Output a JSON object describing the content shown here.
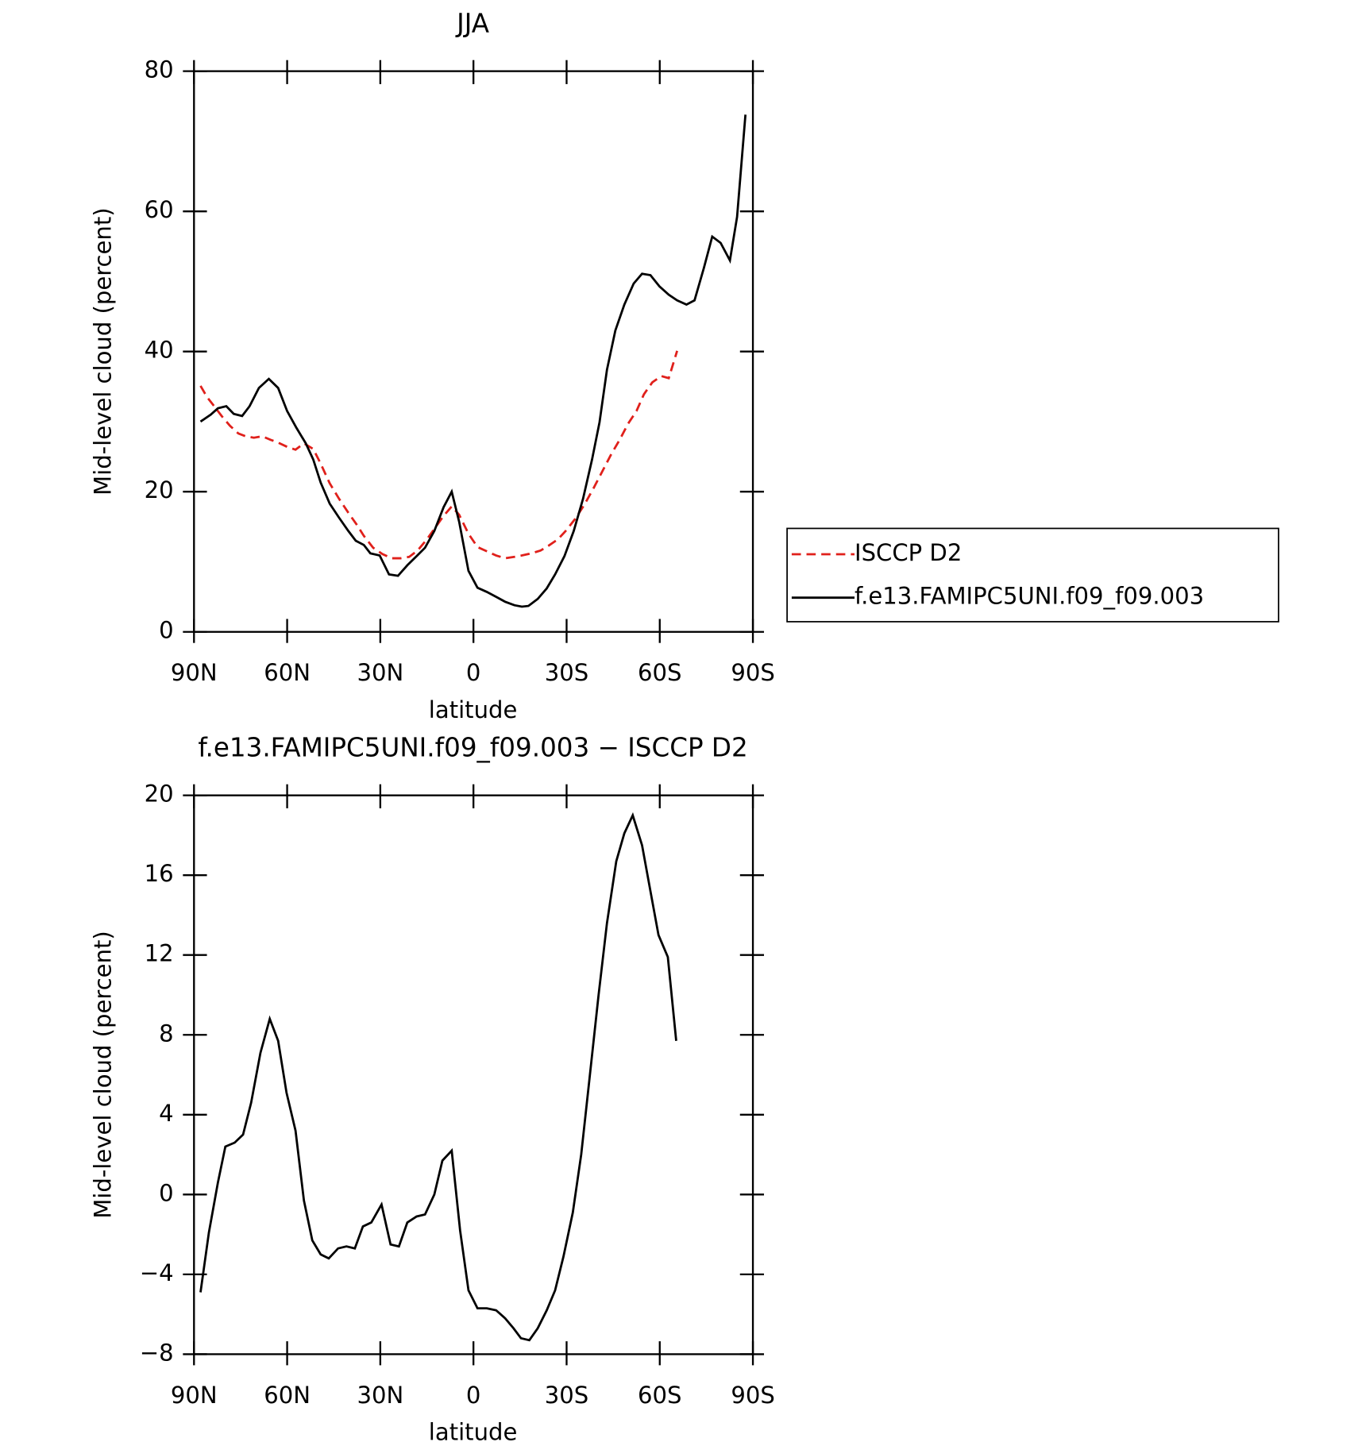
{
  "chart_data": [
    {
      "type": "line",
      "title": "JJA",
      "xlabel": "latitude",
      "ylabel": "Mid-level cloud (percent)",
      "xlim": [
        90,
        -90
      ],
      "xticks": [
        {
          "value": 90,
          "label": "90N"
        },
        {
          "value": 60,
          "label": "60N"
        },
        {
          "value": 30,
          "label": "30N"
        },
        0,
        {
          "value": -30,
          "label": "30S"
        },
        {
          "value": -60,
          "label": "60S"
        },
        {
          "value": -90,
          "label": "90S"
        }
      ],
      "ylim": [
        0,
        80
      ],
      "yticks": [
        0,
        20,
        40,
        60,
        80
      ],
      "legend": "right",
      "series": [
        {
          "name": "ISCCP D2",
          "color": "#e0201b",
          "dash": true,
          "x": [
            87.9,
            85.8,
            83.5,
            81.1,
            78.4,
            75.7,
            73.3,
            70.7,
            68.0,
            65.3,
            62.9,
            60.0,
            57.3,
            54.6,
            51.6,
            49.2,
            46.3,
            43.3,
            40.3,
            37.6,
            35.3,
            32.3,
            29.3,
            26.3,
            23.4,
            20.7,
            18.0,
            15.0,
            12.1,
            9.7,
            7.0,
            4.6,
            1.6,
            -1.3,
            -4.3,
            -7.3,
            -10.2,
            -13.2,
            -15.6,
            -18.6,
            -21.6,
            -24.2,
            -27.2,
            -29.9,
            -32.9,
            -35.8,
            -38.8,
            -41.5,
            -44.2,
            -47.2,
            -49.8,
            -52.5,
            -54.9,
            -57.6,
            -60.5,
            -62.9,
            -65.6
          ],
          "values": [
            35.1,
            33.5,
            32.2,
            30.8,
            29.4,
            28.3,
            27.9,
            27.7,
            27.9,
            27.4,
            27.0,
            26.4,
            26.0,
            26.9,
            26.1,
            24.0,
            21.2,
            19.0,
            17.0,
            15.3,
            13.7,
            12.0,
            11.1,
            10.5,
            10.5,
            10.7,
            11.6,
            13.2,
            15.0,
            16.5,
            17.9,
            16.7,
            14.0,
            12.1,
            11.5,
            10.9,
            10.5,
            10.7,
            10.9,
            11.2,
            11.6,
            12.3,
            13.2,
            14.5,
            16.2,
            18.2,
            20.6,
            22.9,
            25.2,
            27.5,
            29.7,
            31.5,
            33.9,
            35.6,
            36.5,
            36.2,
            40.1
          ]
        },
        {
          "name": "f.e13.FAMIPC5UNI.f09_f09.003",
          "color": "#000000",
          "dash": false,
          "x": [
            87.9,
            84.6,
            82.3,
            79.6,
            77.2,
            74.5,
            72.1,
            69.1,
            65.9,
            62.9,
            60.0,
            57.0,
            54.0,
            51.6,
            49.2,
            46.3,
            43.3,
            40.3,
            37.9,
            35.3,
            33.2,
            30.2,
            27.2,
            24.3,
            21.3,
            18.3,
            15.6,
            12.6,
            9.6,
            7.0,
            4.6,
            1.6,
            -1.3,
            -4.3,
            -7.3,
            -10.2,
            -13.2,
            -15.6,
            -17.7,
            -20.7,
            -23.6,
            -26.3,
            -29.3,
            -32.3,
            -35.3,
            -38.2,
            -40.6,
            -43.0,
            -45.7,
            -48.6,
            -51.6,
            -54.3,
            -57.0,
            -59.9,
            -62.9,
            -65.6,
            -68.6,
            -71.2,
            -74.2,
            -76.9,
            -79.6,
            -82.6,
            -84.9,
            -87.6
          ],
          "values": [
            30.0,
            31.0,
            31.9,
            32.2,
            31.1,
            30.8,
            32.2,
            34.8,
            36.1,
            34.8,
            31.5,
            29.1,
            26.9,
            24.6,
            21.3,
            18.3,
            16.3,
            14.4,
            13.0,
            12.4,
            11.2,
            10.9,
            8.2,
            8.0,
            9.5,
            10.8,
            12.0,
            14.4,
            17.8,
            20.0,
            15.7,
            8.7,
            6.3,
            5.7,
            5.0,
            4.3,
            3.8,
            3.6,
            3.7,
            4.7,
            6.2,
            8.2,
            10.8,
            14.4,
            19.0,
            24.6,
            29.9,
            37.4,
            43.0,
            46.7,
            49.7,
            51.1,
            50.9,
            49.3,
            48.1,
            47.3,
            46.7,
            47.3,
            51.9,
            56.4,
            55.5,
            53.0,
            59.2,
            73.8
          ]
        }
      ]
    },
    {
      "type": "line",
      "title": "f.e13.FAMIPC5UNI.f09_f09.003 − ISCCP D2",
      "xlabel": "latitude",
      "ylabel": "Mid-level cloud (percent)",
      "xlim": [
        90,
        -90
      ],
      "xticks": [
        {
          "value": 90,
          "label": "90N"
        },
        {
          "value": 60,
          "label": "60N"
        },
        {
          "value": 30,
          "label": "30N"
        },
        0,
        {
          "value": -30,
          "label": "30S"
        },
        {
          "value": -60,
          "label": "60S"
        },
        {
          "value": -90,
          "label": "90S"
        }
      ],
      "ylim": [
        -8,
        20
      ],
      "yticks": [
        {
          "value": -8,
          "label": "−8"
        },
        {
          "value": -4,
          "label": "−4"
        },
        0,
        4,
        8,
        12,
        16,
        20
      ],
      "series": [
        {
          "color": "#000000",
          "dash": false,
          "x": [
            87.9,
            85.2,
            82.3,
            79.9,
            76.9,
            74.2,
            71.6,
            68.6,
            65.6,
            62.9,
            60.2,
            57.3,
            54.6,
            51.9,
            49.2,
            46.6,
            43.6,
            40.9,
            38.2,
            35.6,
            32.9,
            29.6,
            26.7,
            24.0,
            21.3,
            18.3,
            15.6,
            12.6,
            10.0,
            7.0,
            4.3,
            1.6,
            -1.3,
            -4.3,
            -7.3,
            -10.2,
            -12.9,
            -15.3,
            -18.0,
            -20.7,
            -23.6,
            -26.3,
            -29.0,
            -32.0,
            -34.7,
            -37.3,
            -40.3,
            -43.0,
            -46.0,
            -48.6,
            -51.3,
            -54.3,
            -57.0,
            -59.6,
            -62.6,
            -65.3
          ],
          "values": [
            -4.9,
            -1.9,
            0.6,
            2.4,
            2.6,
            3.0,
            4.6,
            7.1,
            8.8,
            7.7,
            5.1,
            3.2,
            -0.3,
            -2.3,
            -3.0,
            -3.2,
            -2.7,
            -2.6,
            -2.7,
            -1.6,
            -1.4,
            -0.5,
            -2.5,
            -2.6,
            -1.4,
            -1.1,
            -1.0,
            0.0,
            1.7,
            2.2,
            -1.8,
            -4.8,
            -5.7,
            -5.7,
            -5.8,
            -6.2,
            -6.7,
            -7.2,
            -7.3,
            -6.7,
            -5.8,
            -4.8,
            -3.1,
            -0.9,
            2.0,
            5.7,
            10.0,
            13.6,
            16.7,
            18.1,
            19.0,
            17.5,
            15.2,
            13.0,
            11.9,
            7.7
          ]
        }
      ]
    }
  ]
}
